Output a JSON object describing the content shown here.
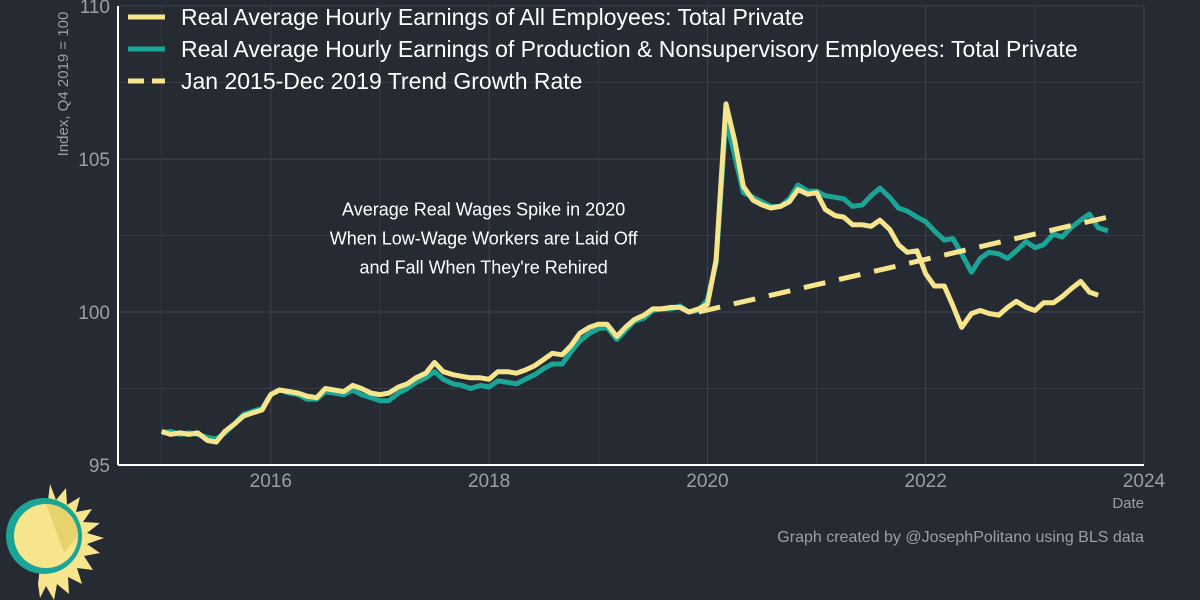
{
  "chart_data": {
    "type": "line",
    "xlabel": "Date",
    "ylabel": "Index, Q4 2019 = 100",
    "xlim": [
      2014.6,
      2024.0
    ],
    "ylim": [
      95,
      110
    ],
    "x_ticks": [
      2016,
      2018,
      2020,
      2022,
      2024
    ],
    "y_ticks": [
      95,
      100,
      105,
      110
    ],
    "grid": true,
    "legend_position": "top-left",
    "series": [
      {
        "name": "Real Average Hourly Earnings of All Employees: Total Private",
        "color": "#f6e58d",
        "style": "solid",
        "points": [
          [
            2015.0,
            96.1
          ],
          [
            2015.08,
            96.0
          ],
          [
            2015.17,
            96.05
          ],
          [
            2015.25,
            96.0
          ],
          [
            2015.33,
            96.05
          ],
          [
            2015.42,
            95.8
          ],
          [
            2015.5,
            95.75
          ],
          [
            2015.58,
            96.1
          ],
          [
            2015.67,
            96.35
          ],
          [
            2015.75,
            96.6
          ],
          [
            2015.83,
            96.7
          ],
          [
            2015.92,
            96.8
          ],
          [
            2016.0,
            97.3
          ],
          [
            2016.08,
            97.45
          ],
          [
            2016.17,
            97.4
          ],
          [
            2016.25,
            97.35
          ],
          [
            2016.33,
            97.25
          ],
          [
            2016.42,
            97.2
          ],
          [
            2016.5,
            97.5
          ],
          [
            2016.58,
            97.45
          ],
          [
            2016.67,
            97.4
          ],
          [
            2016.75,
            97.6
          ],
          [
            2016.83,
            97.5
          ],
          [
            2016.92,
            97.35
          ],
          [
            2017.0,
            97.3
          ],
          [
            2017.08,
            97.35
          ],
          [
            2017.17,
            97.55
          ],
          [
            2017.25,
            97.65
          ],
          [
            2017.33,
            97.85
          ],
          [
            2017.42,
            98.0
          ],
          [
            2017.5,
            98.35
          ],
          [
            2017.58,
            98.05
          ],
          [
            2017.67,
            97.95
          ],
          [
            2017.75,
            97.9
          ],
          [
            2017.83,
            97.85
          ],
          [
            2017.92,
            97.85
          ],
          [
            2018.0,
            97.8
          ],
          [
            2018.08,
            98.05
          ],
          [
            2018.17,
            98.05
          ],
          [
            2018.25,
            98.0
          ],
          [
            2018.33,
            98.1
          ],
          [
            2018.42,
            98.25
          ],
          [
            2018.5,
            98.45
          ],
          [
            2018.58,
            98.65
          ],
          [
            2018.67,
            98.6
          ],
          [
            2018.75,
            98.9
          ],
          [
            2018.83,
            99.3
          ],
          [
            2018.92,
            99.5
          ],
          [
            2019.0,
            99.6
          ],
          [
            2019.08,
            99.6
          ],
          [
            2019.17,
            99.2
          ],
          [
            2019.25,
            99.5
          ],
          [
            2019.33,
            99.75
          ],
          [
            2019.42,
            99.9
          ],
          [
            2019.5,
            100.1
          ],
          [
            2019.58,
            100.1
          ],
          [
            2019.67,
            100.15
          ],
          [
            2019.75,
            100.15
          ],
          [
            2019.83,
            100.0
          ],
          [
            2019.92,
            100.1
          ],
          [
            2020.0,
            100.25
          ],
          [
            2020.08,
            101.7
          ],
          [
            2020.17,
            106.8
          ],
          [
            2020.25,
            105.6
          ],
          [
            2020.33,
            104.1
          ],
          [
            2020.42,
            103.65
          ],
          [
            2020.5,
            103.5
          ],
          [
            2020.58,
            103.4
          ],
          [
            2020.67,
            103.45
          ],
          [
            2020.75,
            103.6
          ],
          [
            2020.83,
            104.0
          ],
          [
            2020.92,
            103.85
          ],
          [
            2021.0,
            103.9
          ],
          [
            2021.08,
            103.35
          ],
          [
            2021.17,
            103.15
          ],
          [
            2021.25,
            103.1
          ],
          [
            2021.33,
            102.85
          ],
          [
            2021.42,
            102.85
          ],
          [
            2021.5,
            102.8
          ],
          [
            2021.58,
            103.0
          ],
          [
            2021.67,
            102.7
          ],
          [
            2021.75,
            102.2
          ],
          [
            2021.83,
            101.95
          ],
          [
            2021.92,
            102.0
          ],
          [
            2022.0,
            101.25
          ],
          [
            2022.08,
            100.85
          ],
          [
            2022.17,
            100.85
          ],
          [
            2022.25,
            100.2
          ],
          [
            2022.33,
            99.5
          ],
          [
            2022.42,
            99.95
          ],
          [
            2022.5,
            100.05
          ],
          [
            2022.58,
            99.95
          ],
          [
            2022.67,
            99.9
          ],
          [
            2022.75,
            100.15
          ],
          [
            2022.83,
            100.35
          ],
          [
            2022.92,
            100.15
          ],
          [
            2023.0,
            100.05
          ],
          [
            2023.08,
            100.3
          ],
          [
            2023.17,
            100.3
          ],
          [
            2023.25,
            100.5
          ],
          [
            2023.33,
            100.75
          ],
          [
            2023.42,
            101.0
          ],
          [
            2023.5,
            100.65
          ],
          [
            2023.58,
            100.55
          ]
        ]
      },
      {
        "name": "Real Average Hourly Earnings of Production & Nonsupervisory Employees: Total Private",
        "color": "#1aa596",
        "style": "solid",
        "points": [
          [
            2015.0,
            96.05
          ],
          [
            2015.08,
            96.1
          ],
          [
            2015.17,
            96.0
          ],
          [
            2015.25,
            96.05
          ],
          [
            2015.33,
            96.0
          ],
          [
            2015.42,
            95.9
          ],
          [
            2015.5,
            95.85
          ],
          [
            2015.58,
            96.05
          ],
          [
            2015.67,
            96.35
          ],
          [
            2015.75,
            96.65
          ],
          [
            2015.83,
            96.75
          ],
          [
            2015.92,
            96.85
          ],
          [
            2016.0,
            97.3
          ],
          [
            2016.08,
            97.45
          ],
          [
            2016.17,
            97.35
          ],
          [
            2016.25,
            97.3
          ],
          [
            2016.33,
            97.15
          ],
          [
            2016.42,
            97.15
          ],
          [
            2016.5,
            97.4
          ],
          [
            2016.58,
            97.35
          ],
          [
            2016.67,
            97.3
          ],
          [
            2016.75,
            97.45
          ],
          [
            2016.83,
            97.3
          ],
          [
            2016.92,
            97.2
          ],
          [
            2017.0,
            97.1
          ],
          [
            2017.08,
            97.1
          ],
          [
            2017.17,
            97.35
          ],
          [
            2017.25,
            97.5
          ],
          [
            2017.33,
            97.7
          ],
          [
            2017.42,
            97.85
          ],
          [
            2017.5,
            98.05
          ],
          [
            2017.58,
            97.8
          ],
          [
            2017.67,
            97.65
          ],
          [
            2017.75,
            97.6
          ],
          [
            2017.83,
            97.5
          ],
          [
            2017.92,
            97.6
          ],
          [
            2018.0,
            97.55
          ],
          [
            2018.08,
            97.75
          ],
          [
            2018.17,
            97.7
          ],
          [
            2018.25,
            97.65
          ],
          [
            2018.33,
            97.8
          ],
          [
            2018.42,
            97.95
          ],
          [
            2018.5,
            98.15
          ],
          [
            2018.58,
            98.3
          ],
          [
            2018.67,
            98.3
          ],
          [
            2018.75,
            98.7
          ],
          [
            2018.83,
            99.05
          ],
          [
            2018.92,
            99.3
          ],
          [
            2019.0,
            99.45
          ],
          [
            2019.08,
            99.5
          ],
          [
            2019.17,
            99.1
          ],
          [
            2019.25,
            99.4
          ],
          [
            2019.33,
            99.7
          ],
          [
            2019.42,
            99.8
          ],
          [
            2019.5,
            100.05
          ],
          [
            2019.58,
            100.1
          ],
          [
            2019.67,
            100.1
          ],
          [
            2019.75,
            100.2
          ],
          [
            2019.83,
            100.0
          ],
          [
            2019.92,
            100.05
          ],
          [
            2020.0,
            100.4
          ],
          [
            2020.08,
            101.6
          ],
          [
            2020.17,
            106.3
          ],
          [
            2020.25,
            105.1
          ],
          [
            2020.33,
            103.9
          ],
          [
            2020.42,
            103.75
          ],
          [
            2020.5,
            103.6
          ],
          [
            2020.58,
            103.45
          ],
          [
            2020.67,
            103.45
          ],
          [
            2020.75,
            103.7
          ],
          [
            2020.83,
            104.15
          ],
          [
            2020.92,
            103.95
          ],
          [
            2021.0,
            103.95
          ],
          [
            2021.08,
            103.8
          ],
          [
            2021.17,
            103.75
          ],
          [
            2021.25,
            103.7
          ],
          [
            2021.33,
            103.45
          ],
          [
            2021.42,
            103.5
          ],
          [
            2021.5,
            103.8
          ],
          [
            2021.58,
            104.05
          ],
          [
            2021.67,
            103.75
          ],
          [
            2021.75,
            103.4
          ],
          [
            2021.83,
            103.3
          ],
          [
            2021.92,
            103.1
          ],
          [
            2022.0,
            102.95
          ],
          [
            2022.08,
            102.65
          ],
          [
            2022.17,
            102.35
          ],
          [
            2022.25,
            102.4
          ],
          [
            2022.33,
            101.9
          ],
          [
            2022.42,
            101.3
          ],
          [
            2022.5,
            101.75
          ],
          [
            2022.58,
            101.95
          ],
          [
            2022.67,
            101.9
          ],
          [
            2022.75,
            101.75
          ],
          [
            2022.83,
            102.0
          ],
          [
            2022.92,
            102.3
          ],
          [
            2023.0,
            102.1
          ],
          [
            2023.08,
            102.2
          ],
          [
            2023.17,
            102.55
          ],
          [
            2023.25,
            102.45
          ],
          [
            2023.33,
            102.75
          ],
          [
            2023.42,
            103.0
          ],
          [
            2023.5,
            103.2
          ],
          [
            2023.58,
            102.75
          ],
          [
            2023.67,
            102.65
          ]
        ]
      },
      {
        "name": "Jan 2015-Dec 2019 Trend Growth Rate",
        "color": "#f6e58d",
        "style": "dashed",
        "points": [
          [
            2019.92,
            100.0
          ],
          [
            2023.67,
            103.1
          ]
        ]
      }
    ],
    "annotation": {
      "lines": [
        "Average Real Wages Spike in 2020",
        "When Low-Wage Workers are Laid Off",
        "and Fall When They're Rehired"
      ],
      "x": 2017.95,
      "y": 103.15
    },
    "credit": "Graph created by @JosephPolitano using BLS data"
  },
  "logo": {
    "name": "sun-logo",
    "colors": [
      "#f6e58d",
      "#1aa596"
    ]
  }
}
